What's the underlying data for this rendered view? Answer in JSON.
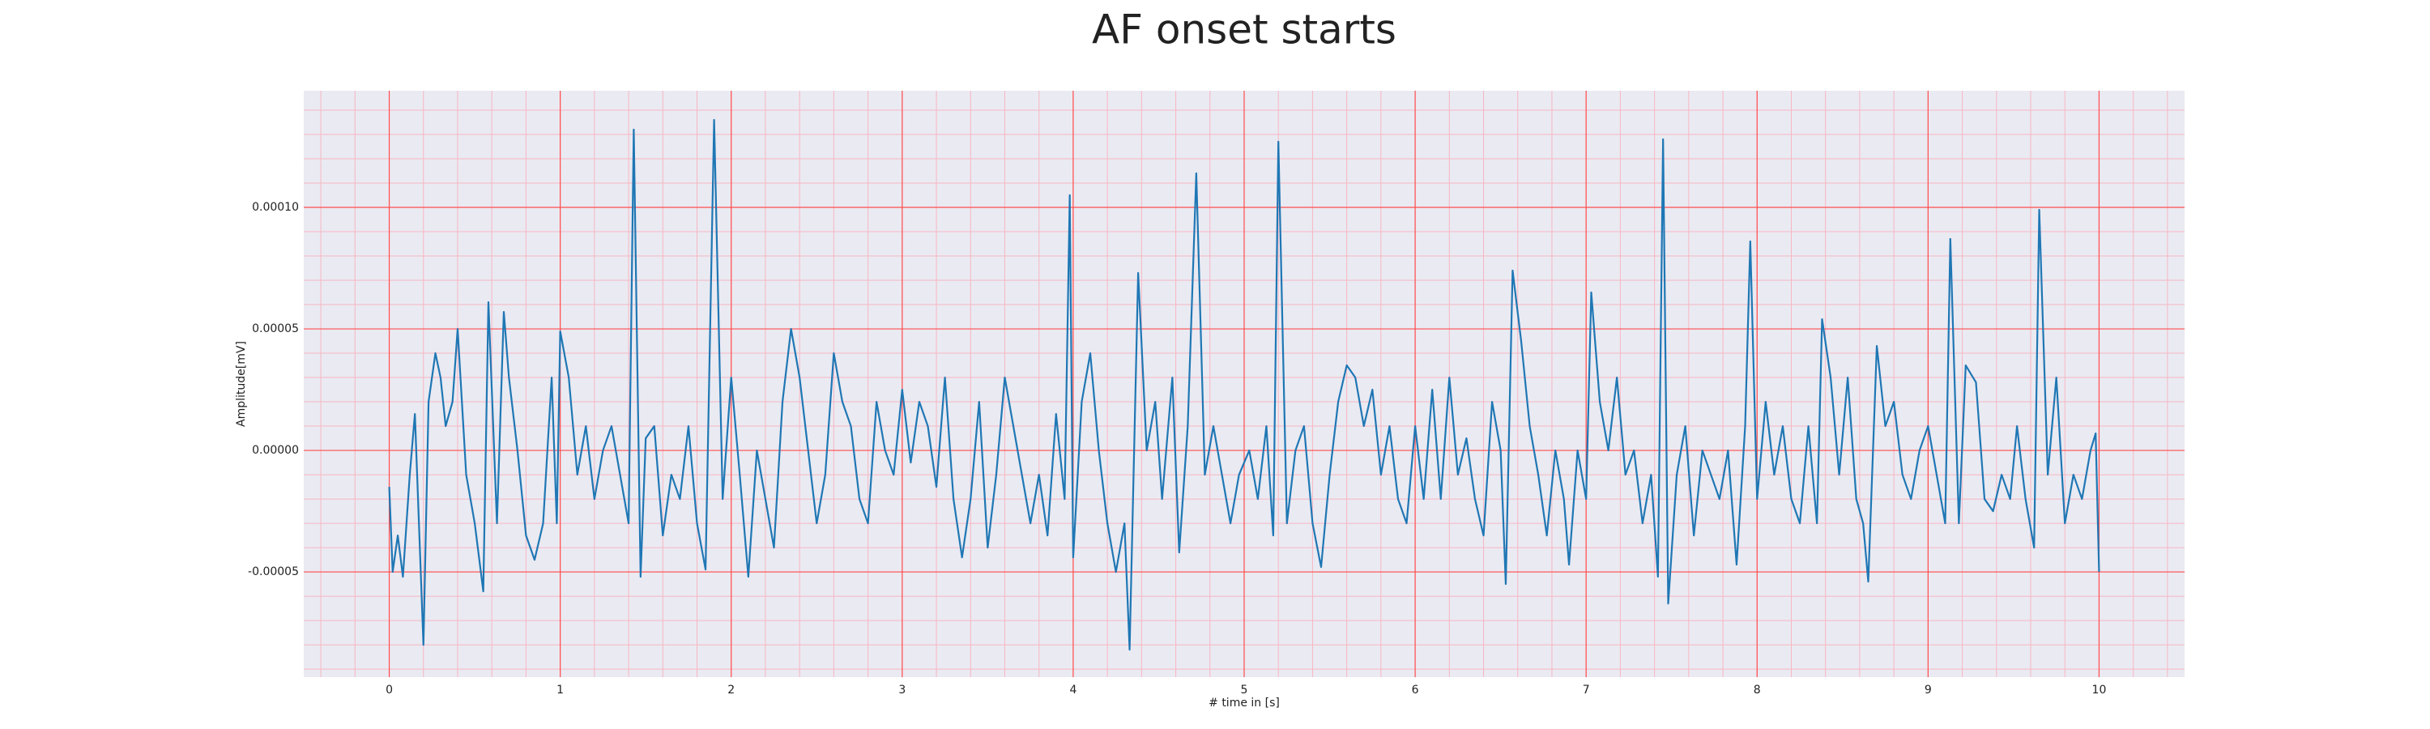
{
  "chart_data": {
    "type": "line",
    "title": "AF onset starts",
    "xlabel": "# time in [s]",
    "ylabel": "Amplitude[mV]",
    "color": "#1f77b4",
    "grid": true,
    "grid_color": "#ff4d4d",
    "minor_grid": {
      "x": 0.2,
      "y": 1e-05,
      "color": "#f7b6c2"
    },
    "xlim": [
      -0.5,
      10.5
    ],
    "xticks": [
      0,
      1,
      2,
      3,
      4,
      5,
      6,
      7,
      8,
      9,
      10
    ],
    "ylim": [
      -9.33e-05,
      0.000148
    ],
    "yticks": [
      {
        "value": -5e-05,
        "label": "-0.00005"
      },
      {
        "value": 0,
        "label": "0.00000"
      },
      {
        "value": 5e-05,
        "label": "0.00005"
      },
      {
        "value": 0.0001,
        "label": "0.00010"
      }
    ],
    "x": [
      0,
      0.02,
      0.05,
      0.08,
      0.12,
      0.15,
      0.2,
      0.23,
      0.27,
      0.3,
      0.33,
      0.37,
      0.4,
      0.45,
      0.5,
      0.55,
      0.58,
      0.63,
      0.67,
      0.7,
      0.75,
      0.8,
      0.85,
      0.9,
      0.95,
      0.98,
      1.0,
      1.05,
      1.1,
      1.15,
      1.2,
      1.25,
      1.3,
      1.35,
      1.4,
      1.43,
      1.47,
      1.5,
      1.55,
      1.6,
      1.65,
      1.7,
      1.75,
      1.8,
      1.85,
      1.9,
      1.95,
      2.0,
      2.05,
      2.1,
      2.15,
      2.2,
      2.25,
      2.3,
      2.35,
      2.4,
      2.45,
      2.5,
      2.55,
      2.6,
      2.65,
      2.7,
      2.75,
      2.8,
      2.85,
      2.9,
      2.95,
      3.0,
      3.05,
      3.1,
      3.15,
      3.2,
      3.25,
      3.3,
      3.35,
      3.4,
      3.45,
      3.5,
      3.55,
      3.6,
      3.65,
      3.7,
      3.75,
      3.8,
      3.85,
      3.9,
      3.95,
      3.98,
      4.0,
      4.05,
      4.1,
      4.15,
      4.2,
      4.25,
      4.3,
      4.33,
      4.38,
      4.43,
      4.48,
      4.52,
      4.58,
      4.62,
      4.67,
      4.72,
      4.77,
      4.82,
      4.87,
      4.92,
      4.97,
      5.03,
      5.08,
      5.13,
      5.17,
      5.2,
      5.25,
      5.3,
      5.35,
      5.4,
      5.45,
      5.5,
      5.55,
      5.6,
      5.65,
      5.7,
      5.75,
      5.8,
      5.85,
      5.9,
      5.95,
      6.0,
      6.05,
      6.1,
      6.15,
      6.2,
      6.25,
      6.3,
      6.35,
      6.4,
      6.45,
      6.5,
      6.53,
      6.57,
      6.62,
      6.67,
      6.72,
      6.77,
      6.82,
      6.87,
      6.9,
      6.95,
      7.0,
      7.03,
      7.08,
      7.13,
      7.18,
      7.23,
      7.28,
      7.33,
      7.38,
      7.42,
      7.45,
      7.48,
      7.53,
      7.58,
      7.63,
      7.68,
      7.73,
      7.78,
      7.83,
      7.88,
      7.93,
      7.96,
      8.0,
      8.05,
      8.1,
      8.15,
      8.2,
      8.25,
      8.3,
      8.35,
      8.38,
      8.43,
      8.48,
      8.53,
      8.58,
      8.62,
      8.65,
      8.7,
      8.75,
      8.8,
      8.85,
      8.9,
      8.95,
      9.0,
      9.05,
      9.1,
      9.13,
      9.18,
      9.22,
      9.28,
      9.33,
      9.38,
      9.43,
      9.48,
      9.52,
      9.57,
      9.62,
      9.65,
      9.7,
      9.75,
      9.8,
      9.85,
      9.9,
      9.95,
      9.98,
      10.0
    ],
    "values": [
      -1.5e-05,
      -5e-05,
      -3.5e-05,
      -5.2e-05,
      -1e-05,
      1.5e-05,
      -8e-05,
      2e-05,
      4e-05,
      3e-05,
      1e-05,
      2e-05,
      5e-05,
      -1e-05,
      -3e-05,
      -5.8e-05,
      6.1e-05,
      -3e-05,
      5.7e-05,
      3e-05,
      0,
      -3.5e-05,
      -4.5e-05,
      -3e-05,
      3e-05,
      -3e-05,
      4.9e-05,
      3e-05,
      -1e-05,
      1e-05,
      -2e-05,
      0,
      1e-05,
      -1e-05,
      -3e-05,
      0.000132,
      -5.2e-05,
      5e-06,
      1e-05,
      -3.5e-05,
      -1e-05,
      -2e-05,
      1e-05,
      -3e-05,
      -4.9e-05,
      0.000136,
      -2e-05,
      3e-05,
      -1e-05,
      -5.2e-05,
      0,
      -2e-05,
      -4e-05,
      2e-05,
      5e-05,
      3e-05,
      0,
      -3e-05,
      -1e-05,
      4e-05,
      2e-05,
      1e-05,
      -2e-05,
      -3e-05,
      2e-05,
      0,
      -1e-05,
      2.5e-05,
      -5e-06,
      2e-05,
      1e-05,
      -1.5e-05,
      3e-05,
      -2e-05,
      -4.4e-05,
      -2e-05,
      2e-05,
      -4e-05,
      -1e-05,
      3e-05,
      1e-05,
      -1e-05,
      -3e-05,
      -1e-05,
      -3.5e-05,
      1.5e-05,
      -2e-05,
      0.000105,
      -4.4e-05,
      2e-05,
      4e-05,
      0,
      -3e-05,
      -5e-05,
      -3e-05,
      -8.2e-05,
      7.3e-05,
      0,
      2e-05,
      -2e-05,
      3e-05,
      -4.2e-05,
      1e-05,
      0.000114,
      -1e-05,
      1e-05,
      -1e-05,
      -3e-05,
      -1e-05,
      0,
      -2e-05,
      1e-05,
      -3.5e-05,
      0.000127,
      -3e-05,
      0,
      1e-05,
      -3e-05,
      -4.8e-05,
      -1e-05,
      2e-05,
      3.5e-05,
      3e-05,
      1e-05,
      2.5e-05,
      -1e-05,
      1e-05,
      -2e-05,
      -3e-05,
      1e-05,
      -2e-05,
      2.5e-05,
      -2e-05,
      3e-05,
      -1e-05,
      5e-06,
      -2e-05,
      -3.5e-05,
      2e-05,
      0,
      -5.5e-05,
      7.4e-05,
      4.5e-05,
      1e-05,
      -1e-05,
      -3.5e-05,
      0,
      -2e-05,
      -4.7e-05,
      0,
      -2e-05,
      6.5e-05,
      2e-05,
      0,
      3e-05,
      -1e-05,
      0,
      -3e-05,
      -1e-05,
      -5.2e-05,
      0.000128,
      -6.3e-05,
      -1e-05,
      1e-05,
      -3.5e-05,
      0,
      -1e-05,
      -2e-05,
      0,
      -4.7e-05,
      1e-05,
      8.6e-05,
      -2e-05,
      2e-05,
      -1e-05,
      1e-05,
      -2e-05,
      -3e-05,
      1e-05,
      -3e-05,
      5.4e-05,
      3e-05,
      -1e-05,
      3e-05,
      -2e-05,
      -3e-05,
      -5.4e-05,
      4.3e-05,
      1e-05,
      2e-05,
      -1e-05,
      -2e-05,
      0,
      1e-05,
      -1e-05,
      -3e-05,
      8.7e-05,
      -3e-05,
      3.5e-05,
      2.8e-05,
      -2e-05,
      -2.5e-05,
      -1e-05,
      -2e-05,
      1e-05,
      -2e-05,
      -4e-05,
      9.9e-05,
      -1e-05,
      3e-05,
      -3e-05,
      -1e-05,
      -2e-05,
      0,
      7e-06,
      -5e-05
    ]
  }
}
